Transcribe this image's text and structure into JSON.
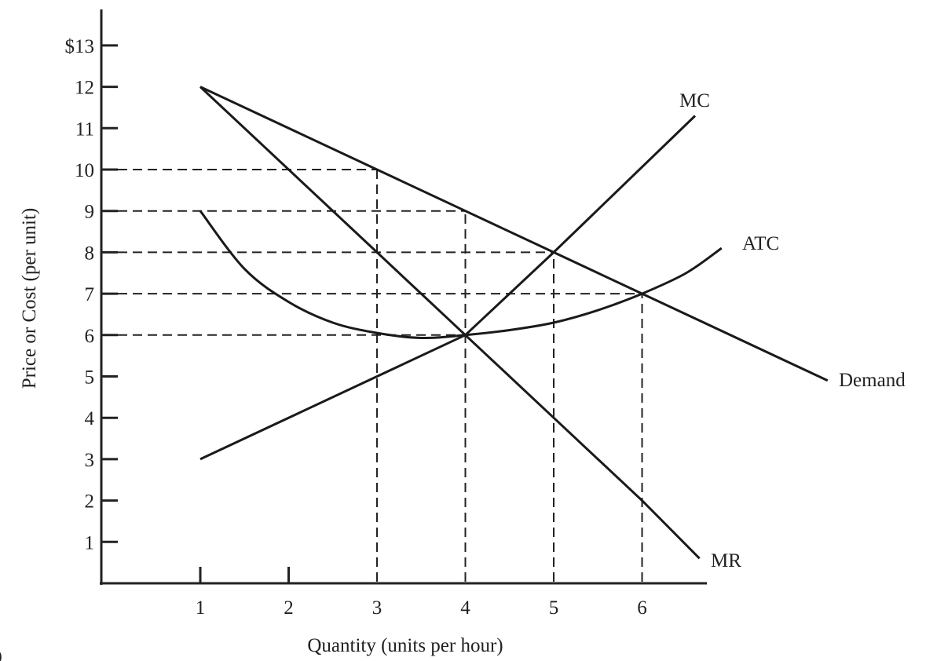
{
  "chart_data": {
    "type": "line",
    "title": "",
    "xlabel": "Quantity (units per hour)",
    "ylabel": "Price or Cost (per unit)",
    "xlim": [
      0,
      6.7
    ],
    "ylim": [
      0,
      13
    ],
    "grid": false,
    "x_ticks": [
      {
        "value": 1,
        "label": "1"
      },
      {
        "value": 2,
        "label": "2"
      },
      {
        "value": 3,
        "label": "3"
      },
      {
        "value": 4,
        "label": "4"
      },
      {
        "value": 5,
        "label": "5"
      },
      {
        "value": 6,
        "label": "6"
      }
    ],
    "y_ticks": [
      {
        "value": 13,
        "label": "$13"
      },
      {
        "value": 12,
        "label": "12"
      },
      {
        "value": 11,
        "label": "11"
      },
      {
        "value": 10,
        "label": "10"
      },
      {
        "value": 9,
        "label": "9"
      },
      {
        "value": 8,
        "label": "8"
      },
      {
        "value": 7,
        "label": "7"
      },
      {
        "value": 6,
        "label": "6"
      },
      {
        "value": 5,
        "label": "5"
      },
      {
        "value": 4,
        "label": "4"
      },
      {
        "value": 3,
        "label": "3"
      },
      {
        "value": 2,
        "label": "2"
      },
      {
        "value": 1,
        "label": "1"
      }
    ],
    "series": [
      {
        "name": "Demand",
        "points": [
          [
            1,
            12
          ],
          [
            3,
            10
          ],
          [
            4,
            9
          ],
          [
            5,
            8
          ],
          [
            6,
            7
          ],
          [
            8.1,
            4.9
          ]
        ]
      },
      {
        "name": "MR",
        "points": [
          [
            1,
            12
          ],
          [
            3,
            8
          ],
          [
            4,
            6
          ],
          [
            5,
            4
          ],
          [
            6,
            2
          ],
          [
            6.65,
            0.6
          ]
        ]
      },
      {
        "name": "MC",
        "points": [
          [
            1,
            3
          ],
          [
            4,
            6
          ],
          [
            5,
            8
          ],
          [
            6.6,
            11.3
          ]
        ]
      },
      {
        "name": "ATC",
        "points": [
          [
            1,
            9
          ],
          [
            1.5,
            7.6
          ],
          [
            2,
            6.8
          ],
          [
            2.5,
            6.3
          ],
          [
            3,
            6.05
          ],
          [
            3.5,
            5.93
          ],
          [
            4,
            6
          ],
          [
            4.5,
            6.12
          ],
          [
            5,
            6.3
          ],
          [
            5.5,
            6.6
          ],
          [
            6,
            7
          ],
          [
            6.5,
            7.5
          ],
          [
            6.9,
            8.1
          ]
        ]
      }
    ],
    "reference_lines": [
      {
        "type": "horizontal",
        "y": 10,
        "to_x": 3
      },
      {
        "type": "horizontal",
        "y": 9,
        "to_x": 4
      },
      {
        "type": "horizontal",
        "y": 8,
        "to_x": 5
      },
      {
        "type": "horizontal",
        "y": 7,
        "to_x": 6
      },
      {
        "type": "horizontal",
        "y": 6,
        "to_x": 4
      },
      {
        "type": "vertical",
        "x": 3,
        "to_y": 10
      },
      {
        "type": "vertical",
        "x": 4,
        "to_y": 9
      },
      {
        "type": "vertical",
        "x": 5,
        "to_y": 8
      },
      {
        "type": "vertical",
        "x": 6,
        "to_y": 7
      }
    ]
  },
  "stray_mark": ")"
}
